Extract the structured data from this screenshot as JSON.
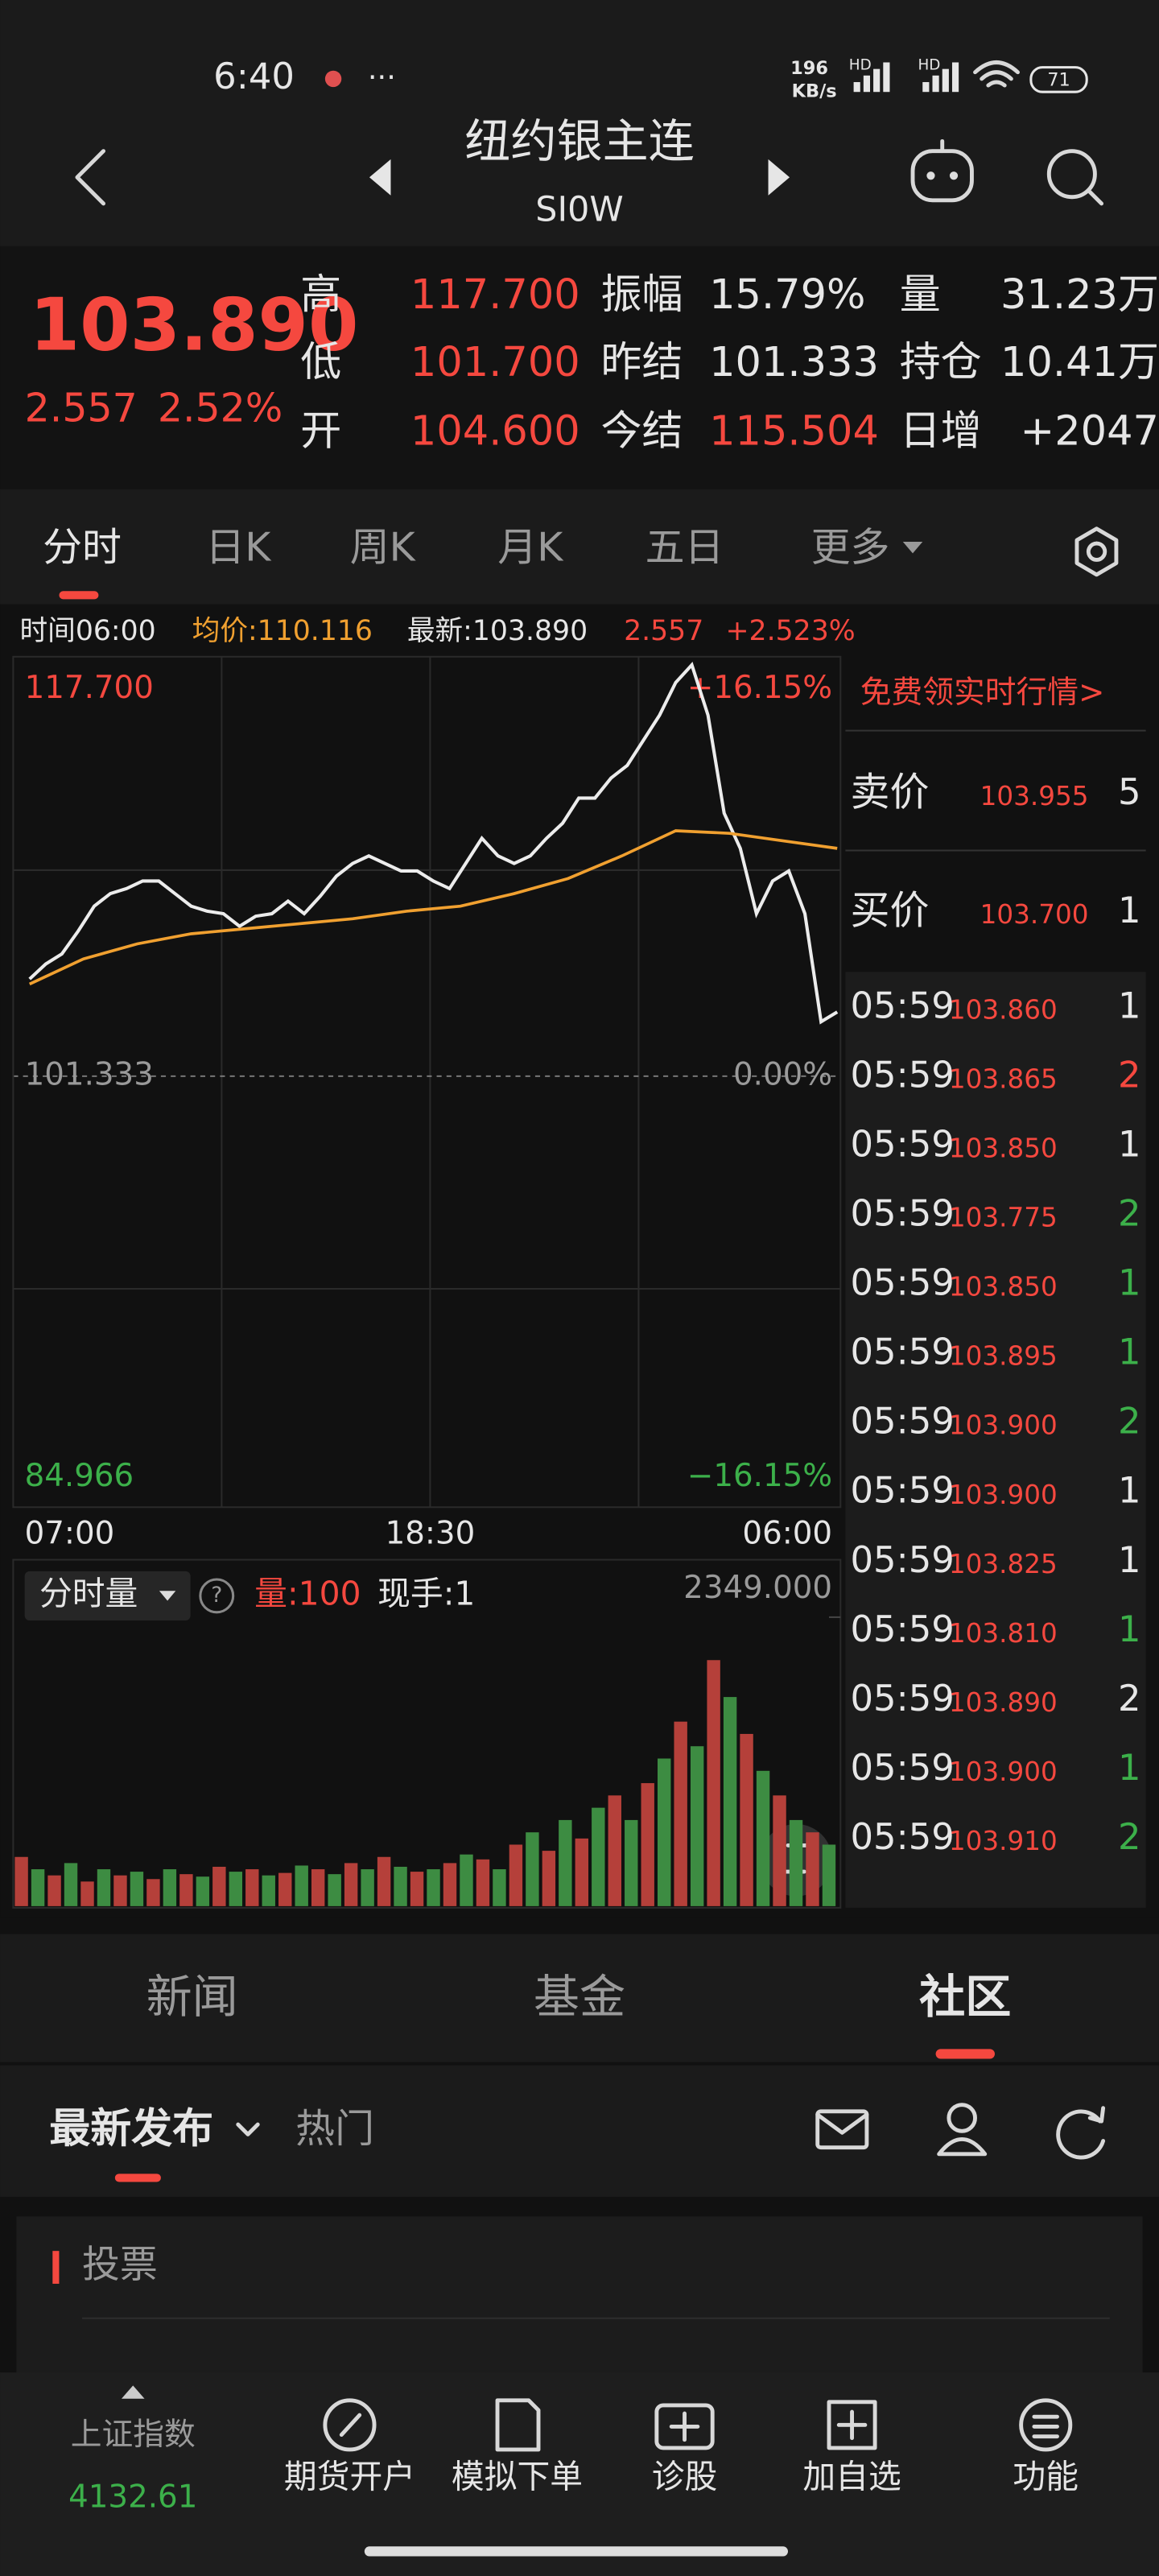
{
  "status": {
    "time": "6:40",
    "speed": "196",
    "speed_unit": "KB/s",
    "network": [
      "HD",
      "HD"
    ],
    "battery": "71"
  },
  "header": {
    "title": "纽约银主连",
    "code": "SI0W"
  },
  "quote": {
    "price": "103.890",
    "change": "2.557",
    "change_pct": "2.52%",
    "fields": [
      [
        {
          "label": "高",
          "value": "117.700"
        },
        {
          "label": "振幅",
          "value": "15.79%"
        },
        {
          "label": "量",
          "value": "31.23万"
        }
      ],
      [
        {
          "label": "低",
          "value": "101.700"
        },
        {
          "label": "昨结",
          "value": "101.333"
        },
        {
          "label": "持仓",
          "value": "10.41万"
        }
      ],
      [
        {
          "label": "开",
          "value": "104.600"
        },
        {
          "label": "今结",
          "value": "115.504"
        },
        {
          "label": "日增",
          "value": "+2047"
        }
      ]
    ]
  },
  "tabs": [
    "分时",
    "日K",
    "周K",
    "月K",
    "五日",
    "更多"
  ],
  "info": [
    "时间06:00",
    "均价:110.116",
    "最新:103.890",
    "2.557",
    "+2.523%"
  ],
  "chart_data": {
    "type": "line",
    "ylim": [
      84.966,
      117.7
    ],
    "yticks": [
      {
        "value": 117.7,
        "label": "117.700"
      },
      101.333,
      84.966
    ],
    "pct_labels": [
      "+16.15%",
      "0.00%",
      "−16.15%"
    ],
    "xlabels": [
      "07:00",
      "18:30",
      "06:00"
    ],
    "series": [
      {
        "color": "#ececec",
        "values": [
          105.2,
          105.8,
          106.2,
          107.1,
          108.1,
          108.6,
          108.8,
          109.1,
          109.1,
          108.6,
          108.1,
          107.9,
          107.8,
          107.3,
          107.7,
          107.8,
          108.3,
          107.8,
          108.5,
          109.3,
          109.8,
          110.1,
          109.8,
          109.5,
          109.5,
          109.1,
          108.8,
          109.8,
          110.8,
          110.1,
          109.8,
          110.1,
          110.8,
          111.4,
          112.4,
          112.4,
          113.2,
          113.7,
          114.7,
          115.7,
          117.0,
          117.7,
          115.7,
          111.8,
          110.4,
          107.8,
          109.1,
          109.5,
          107.8,
          103.5,
          103.89
        ]
      },
      {
        "color": "#f0a030",
        "values": [
          105.0,
          106.0,
          106.6,
          107.0,
          107.2,
          107.4,
          107.6,
          107.9,
          108.1,
          108.6,
          109.2,
          110.1,
          111.1,
          111.0,
          110.7,
          110.4
        ]
      }
    ]
  },
  "volume": {
    "type": "bar",
    "label": "分时量",
    "qty": "量:100",
    "hand": "现手:1",
    "ylim": [
      0,
      2349
    ],
    "yticks": [
      {
        "value": 2349,
        "label": "2349.000"
      }
    ],
    "colors": [
      "#b5403a",
      "#3d8c42"
    ],
    "values": [
      400,
      300,
      250,
      350,
      200,
      300,
      250,
      280,
      220,
      300,
      260,
      240,
      320,
      280,
      300,
      250,
      270,
      330,
      300,
      260,
      350,
      300,
      400,
      320,
      280,
      300,
      350,
      420,
      380,
      300,
      500,
      600,
      450,
      700,
      550,
      800,
      900,
      700,
      1000,
      1200,
      1500,
      1300,
      2000,
      1700,
      1400,
      1100,
      900,
      700,
      600,
      500
    ]
  },
  "orderbook": {
    "promo": "免费领实时行情>",
    "levels": [
      {
        "label": "卖价",
        "price": "103.955",
        "qty": "5"
      },
      {
        "label": "买价",
        "price": "103.700",
        "qty": "1"
      }
    ],
    "trades": [
      {
        "time": "05:59",
        "price": "103.860",
        "qty": "1",
        "side": "n"
      },
      {
        "time": "05:59",
        "price": "103.865",
        "qty": "2",
        "side": "r"
      },
      {
        "time": "05:59",
        "price": "103.850",
        "qty": "1",
        "side": "n"
      },
      {
        "time": "05:59",
        "price": "103.775",
        "qty": "2",
        "side": "g"
      },
      {
        "time": "05:59",
        "price": "103.850",
        "qty": "1",
        "side": "g"
      },
      {
        "time": "05:59",
        "price": "103.895",
        "qty": "1",
        "side": "g"
      },
      {
        "time": "05:59",
        "price": "103.900",
        "qty": "2",
        "side": "g"
      },
      {
        "time": "05:59",
        "price": "103.900",
        "qty": "1",
        "side": "n"
      },
      {
        "time": "05:59",
        "price": "103.825",
        "qty": "1",
        "side": "n"
      },
      {
        "time": "05:59",
        "price": "103.810",
        "qty": "1",
        "side": "g"
      },
      {
        "time": "05:59",
        "price": "103.890",
        "qty": "2",
        "side": "n"
      },
      {
        "time": "05:59",
        "price": "103.900",
        "qty": "1",
        "side": "g"
      },
      {
        "time": "05:59",
        "price": "103.910",
        "qty": "2",
        "side": "g"
      }
    ]
  },
  "sections": [
    "新闻",
    "基金",
    "社区"
  ],
  "subtabs": [
    "最新发布",
    "热门"
  ],
  "card": {
    "title": "投票"
  },
  "bottom_nav": {
    "index": {
      "name": "上证指数",
      "value": "4132.61"
    },
    "items": [
      "期货开户",
      "模拟下单",
      "诊股",
      "加自选",
      "功能"
    ]
  }
}
